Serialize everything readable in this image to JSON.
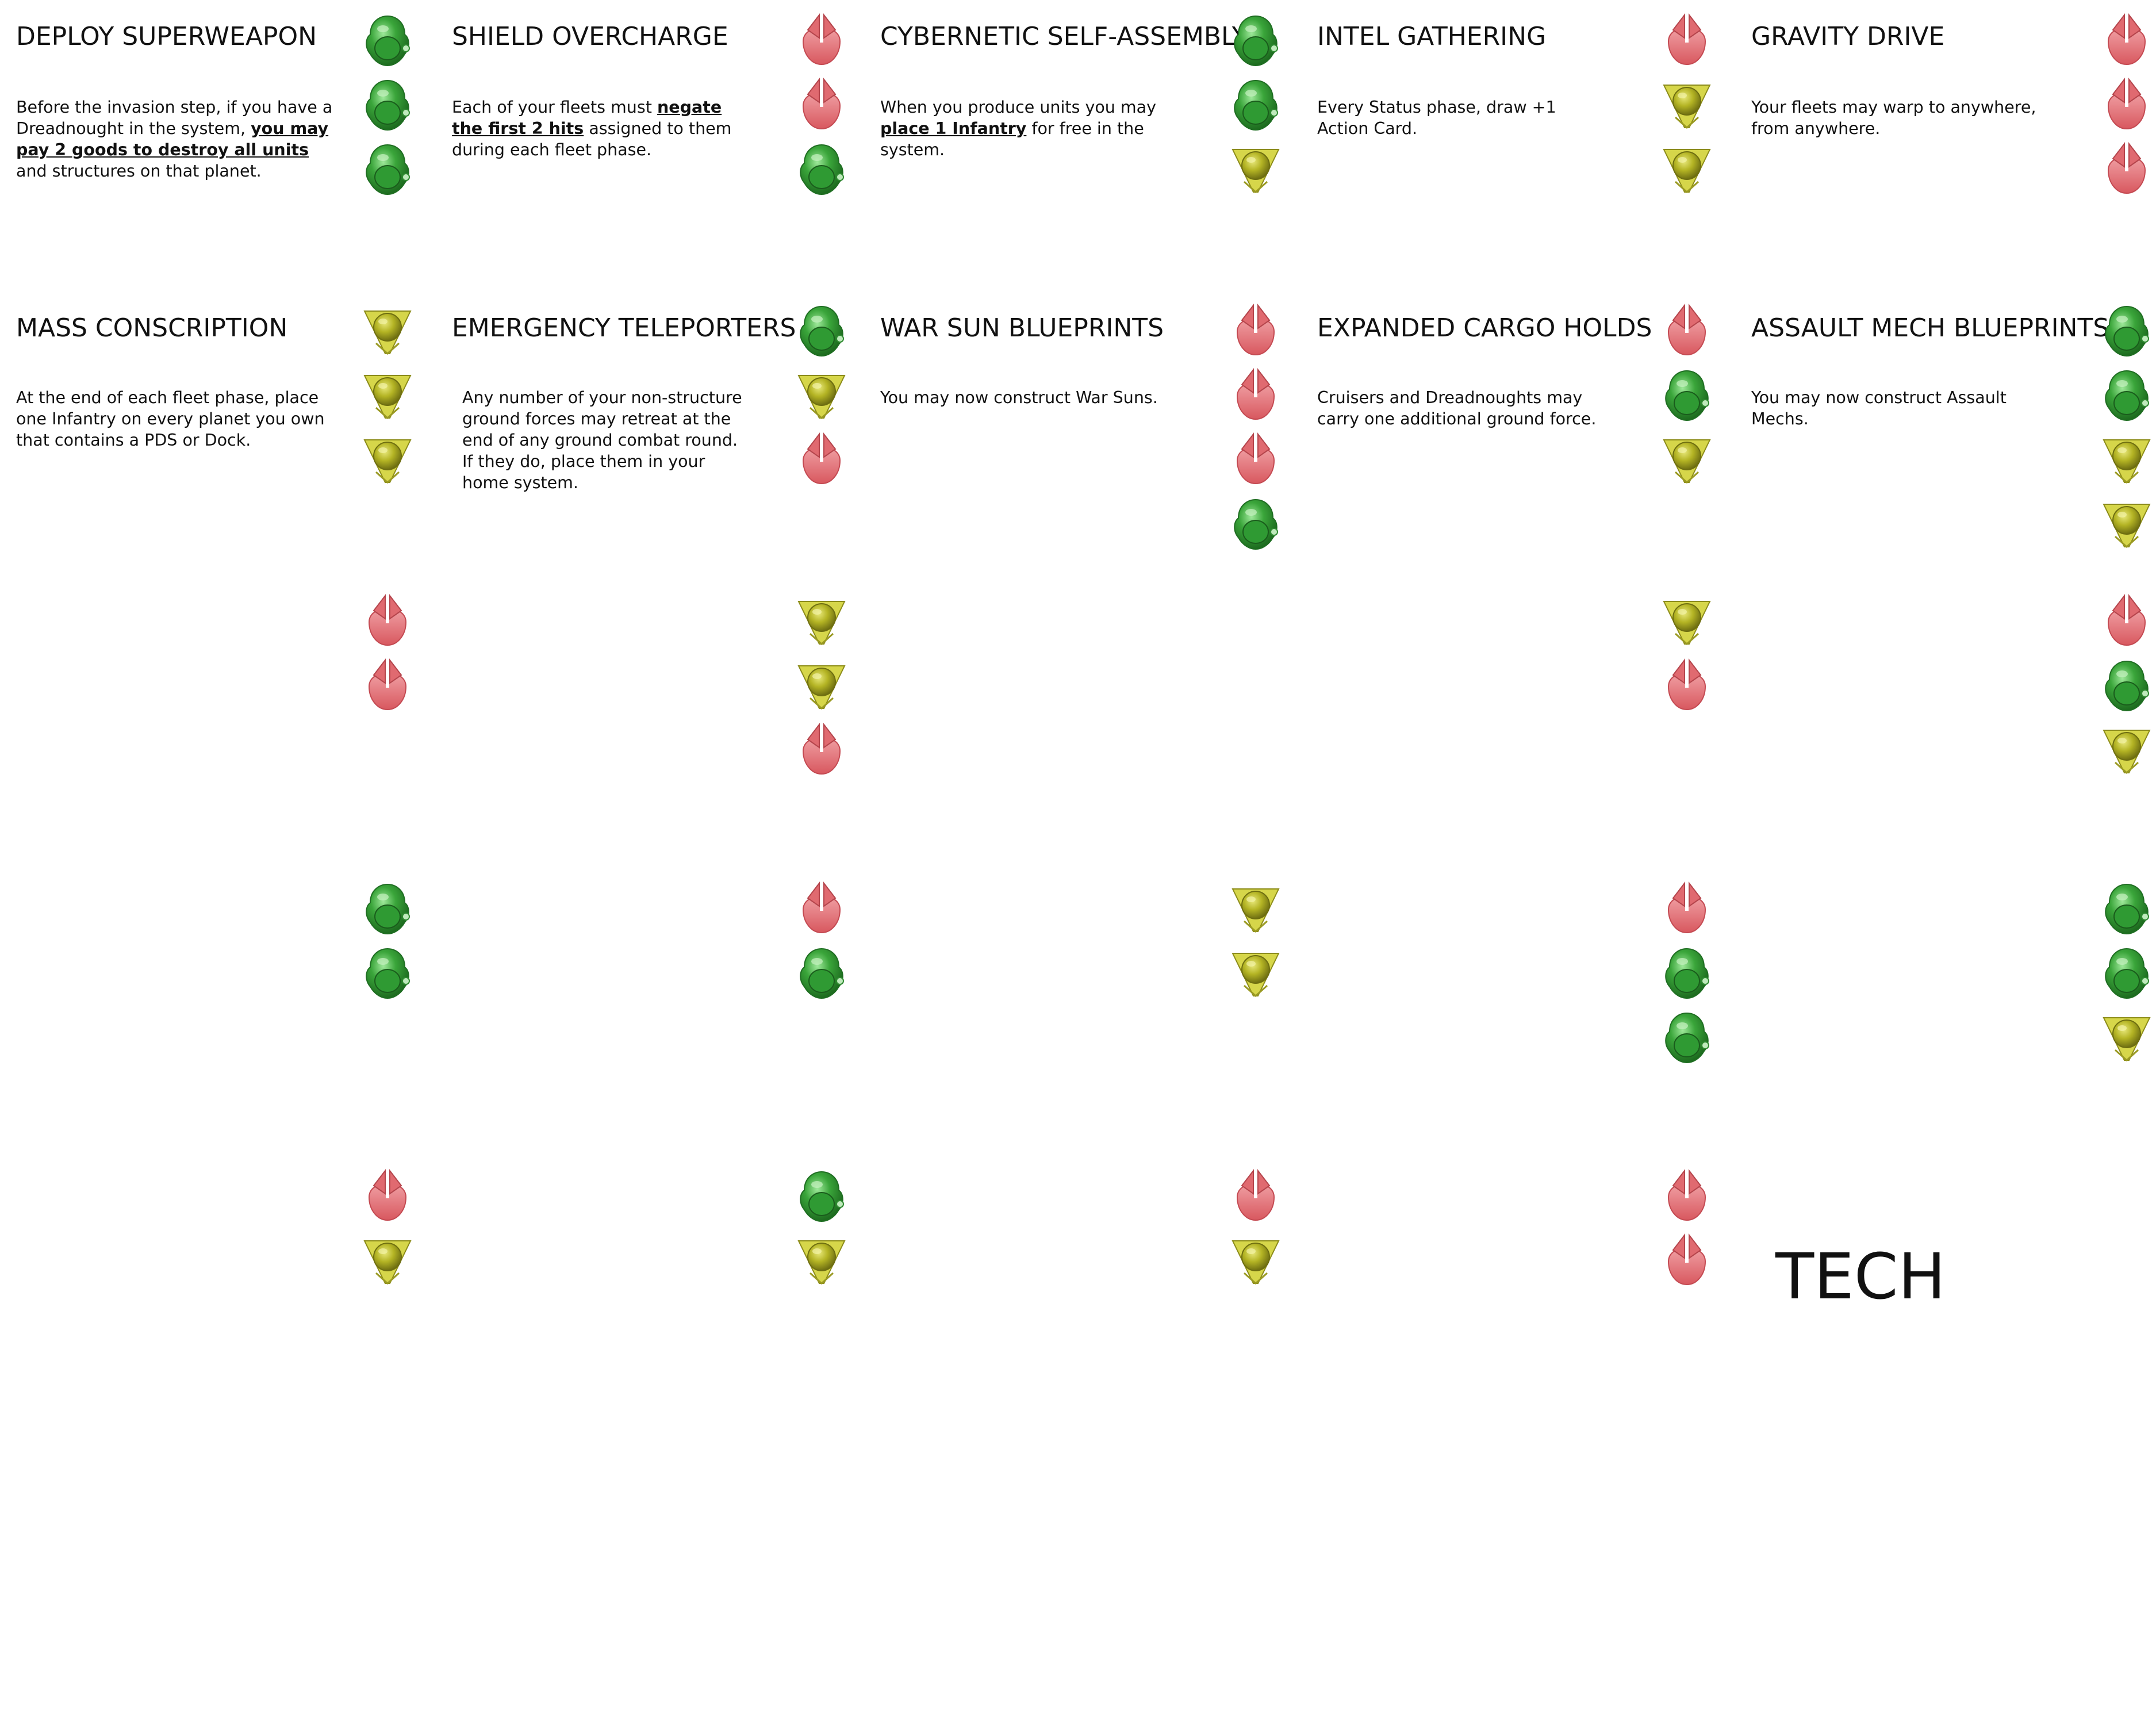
{
  "icon_colors": {
    "green": "#3aa53a",
    "yellow": "#b4b424",
    "red": "#e0686e"
  },
  "icon_names": {
    "green": "green-orb-icon",
    "yellow": "yellow-triangle-orb-icon",
    "red": "red-split-shield-icon"
  },
  "cards": [
    {
      "title": "DEPLOY SUPERWEAPON",
      "description": [
        {
          "t": "Before the invasion step, if you have a Dreadnought in the system, "
        },
        {
          "t": "you may pay 2 goods to destroy all units",
          "em": true
        },
        {
          "t": " and structures on that planet."
        }
      ],
      "icons": [
        "green",
        "green",
        "green"
      ]
    },
    {
      "title": "SHIELD OVERCHARGE",
      "description": [
        {
          "t": "Each of your fleets must "
        },
        {
          "t": "negate the first 2 hits",
          "em": true
        },
        {
          "t": " assigned to them during each fleet phase."
        }
      ],
      "icons": [
        "red",
        "red",
        "green"
      ]
    },
    {
      "title": "CYBERNETIC SELF-ASSEMBLY",
      "description": [
        {
          "t": "When you produce units you may "
        },
        {
          "t": "place 1 Infantry",
          "em": true
        },
        {
          "t": " for free in the system."
        }
      ],
      "icons": [
        "green",
        "green",
        "yellow"
      ]
    },
    {
      "title": "INTEL GATHERING",
      "description": [
        {
          "t": "Every Status phase, draw +1 Action Card."
        }
      ],
      "icons": [
        "red",
        "yellow",
        "yellow"
      ]
    },
    {
      "title": "GRAVITY DRIVE",
      "description": [
        {
          "t": "Your fleets may warp to anywhere, from anywhere."
        }
      ],
      "icons": [
        "red",
        "red",
        "red"
      ]
    },
    {
      "title": "MASS CONSCRIPTION",
      "description": [
        {
          "t": "At the end of each fleet phase, place one Infantry on every planet you own that contains a PDS or Dock."
        }
      ],
      "icons": [
        "yellow",
        "yellow",
        "yellow"
      ]
    },
    {
      "title": "EMERGENCY TELEPORTERS",
      "description": [
        {
          "t": "Any number of your non-structure ground forces may retreat at the end of any ground combat round. If they do, place them in your home system."
        }
      ],
      "icons": [
        "green",
        "yellow",
        "red"
      ]
    },
    {
      "title": "WAR SUN BLUEPRINTS",
      "description": [
        {
          "t": "You may now construct War Suns."
        }
      ],
      "icons": [
        "red",
        "red",
        "red",
        "green"
      ]
    },
    {
      "title": "EXPANDED CARGO HOLDS",
      "description": [
        {
          "t": "Cruisers and Dreadnoughts may carry one additional ground force."
        }
      ],
      "icons": [
        "red",
        "green",
        "yellow"
      ]
    },
    {
      "title": "ASSAULT MECH BLUEPRINTS",
      "description": [
        {
          "t": "You may now construct Assault Mechs."
        }
      ],
      "icons": [
        "green",
        "green",
        "yellow",
        "yellow"
      ]
    },
    {
      "title": "",
      "description": [],
      "icons": [
        "red",
        "red"
      ]
    },
    {
      "title": "",
      "description": [],
      "icons": [
        "yellow",
        "yellow",
        "red"
      ]
    },
    {
      "title": "",
      "description": [],
      "icons": []
    },
    {
      "title": "",
      "description": [],
      "icons": [
        "yellow",
        "red"
      ]
    },
    {
      "title": "",
      "description": [],
      "icons": [
        "red",
        "green",
        "yellow"
      ]
    },
    {
      "title": "",
      "description": [],
      "icons": [
        "green",
        "green"
      ]
    },
    {
      "title": "",
      "description": [],
      "icons": [
        "red",
        "green"
      ]
    },
    {
      "title": "",
      "description": [],
      "icons": [
        "yellow",
        "yellow"
      ]
    },
    {
      "title": "",
      "description": [],
      "icons": [
        "red",
        "green",
        "green"
      ]
    },
    {
      "title": "",
      "description": [],
      "icons": [
        "green",
        "green",
        "yellow"
      ]
    },
    {
      "title": "",
      "description": [],
      "icons": [
        "red",
        "yellow"
      ]
    },
    {
      "title": "",
      "description": [],
      "icons": [
        "green",
        "yellow"
      ]
    },
    {
      "title": "",
      "description": [],
      "icons": [
        "red",
        "yellow"
      ]
    },
    {
      "title": "",
      "description": [],
      "icons": [
        "red",
        "red"
      ]
    },
    {
      "title": "",
      "description": [],
      "icons": []
    }
  ],
  "tech_label": "TECH"
}
